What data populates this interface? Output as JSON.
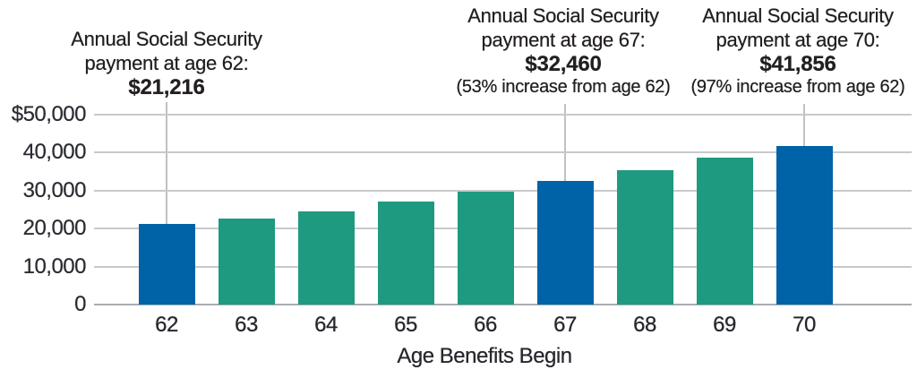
{
  "annotations": [
    {
      "line1": "Annual Social Security",
      "line2": "payment at age 62:",
      "value": "$21,216",
      "age": "62"
    },
    {
      "line1": "Annual Social Security",
      "line2": "payment at age 67:",
      "value": "$32,460",
      "note": "(53% increase from age 62)",
      "age": "67"
    },
    {
      "line1": "Annual Social Security",
      "line2": "payment at age 70:",
      "value": "$41,856",
      "note": "(97% increase from age 62)",
      "age": "70"
    }
  ],
  "chart_data": {
    "type": "bar",
    "categories": [
      "62",
      "63",
      "64",
      "65",
      "66",
      "67",
      "68",
      "69",
      "70"
    ],
    "values": [
      21216,
      22700,
      24550,
      27050,
      29750,
      32460,
      35450,
      38650,
      41856
    ],
    "labeled_values": {
      "62": "$21,216",
      "67": "$32,460",
      "70": "$41,856"
    },
    "highlighted_categories": [
      "62",
      "67",
      "70"
    ],
    "xlabel": "Age Benefits Begin",
    "ylabel": "",
    "ylim": [
      0,
      50000
    ],
    "grid": "horizontal",
    "legend": "none",
    "y_ticks": [
      {
        "label": "$50,000",
        "value": 50000
      },
      {
        "label": "40,000",
        "value": 40000
      },
      {
        "label": "30,000",
        "value": 30000
      },
      {
        "label": "20,000",
        "value": 20000
      },
      {
        "label": "10,000",
        "value": 10000
      },
      {
        "label": "0",
        "value": 0
      }
    ]
  },
  "colors": {
    "bar_highlight": "#0062a7",
    "bar_default": "#1e9a80",
    "gridline": "#c7cacc",
    "baseline": "#a9adb1",
    "callout_line": "#bfc2c4",
    "text": "#26272c"
  }
}
